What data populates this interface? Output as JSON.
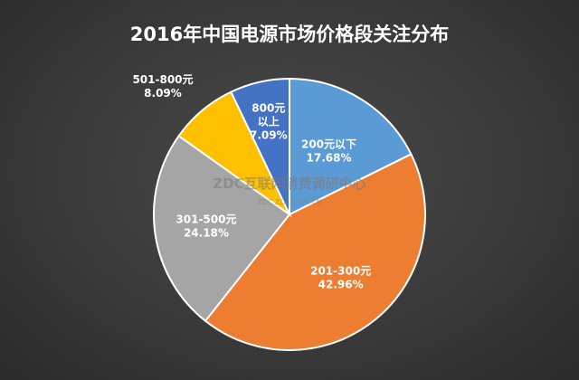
{
  "chart_data": {
    "type": "pie",
    "title": "2016年中国电源市场价格段关注分布",
    "slices": [
      {
        "label": "200元以下",
        "value": 17.68,
        "value_label": "17.68%",
        "color": "#5b9bd5"
      },
      {
        "label": "201-300元",
        "value": 42.96,
        "value_label": "42.96%",
        "color": "#ed7d31"
      },
      {
        "label": "301-500元",
        "value": 24.18,
        "value_label": "24.18%",
        "color": "#a5a5a5"
      },
      {
        "label": "501-800元",
        "value": 8.09,
        "value_label": "8.09%",
        "color": "#ffc000"
      },
      {
        "label": "800元以上",
        "label_lines": [
          "800元",
          "以上"
        ],
        "value": 7.09,
        "value_label": "7.09%",
        "color": "#4472c4"
      }
    ]
  },
  "watermark": {
    "main": "ZDC互联网消费调研中心",
    "sub": "ZDC.ZOL.COM.CN"
  }
}
